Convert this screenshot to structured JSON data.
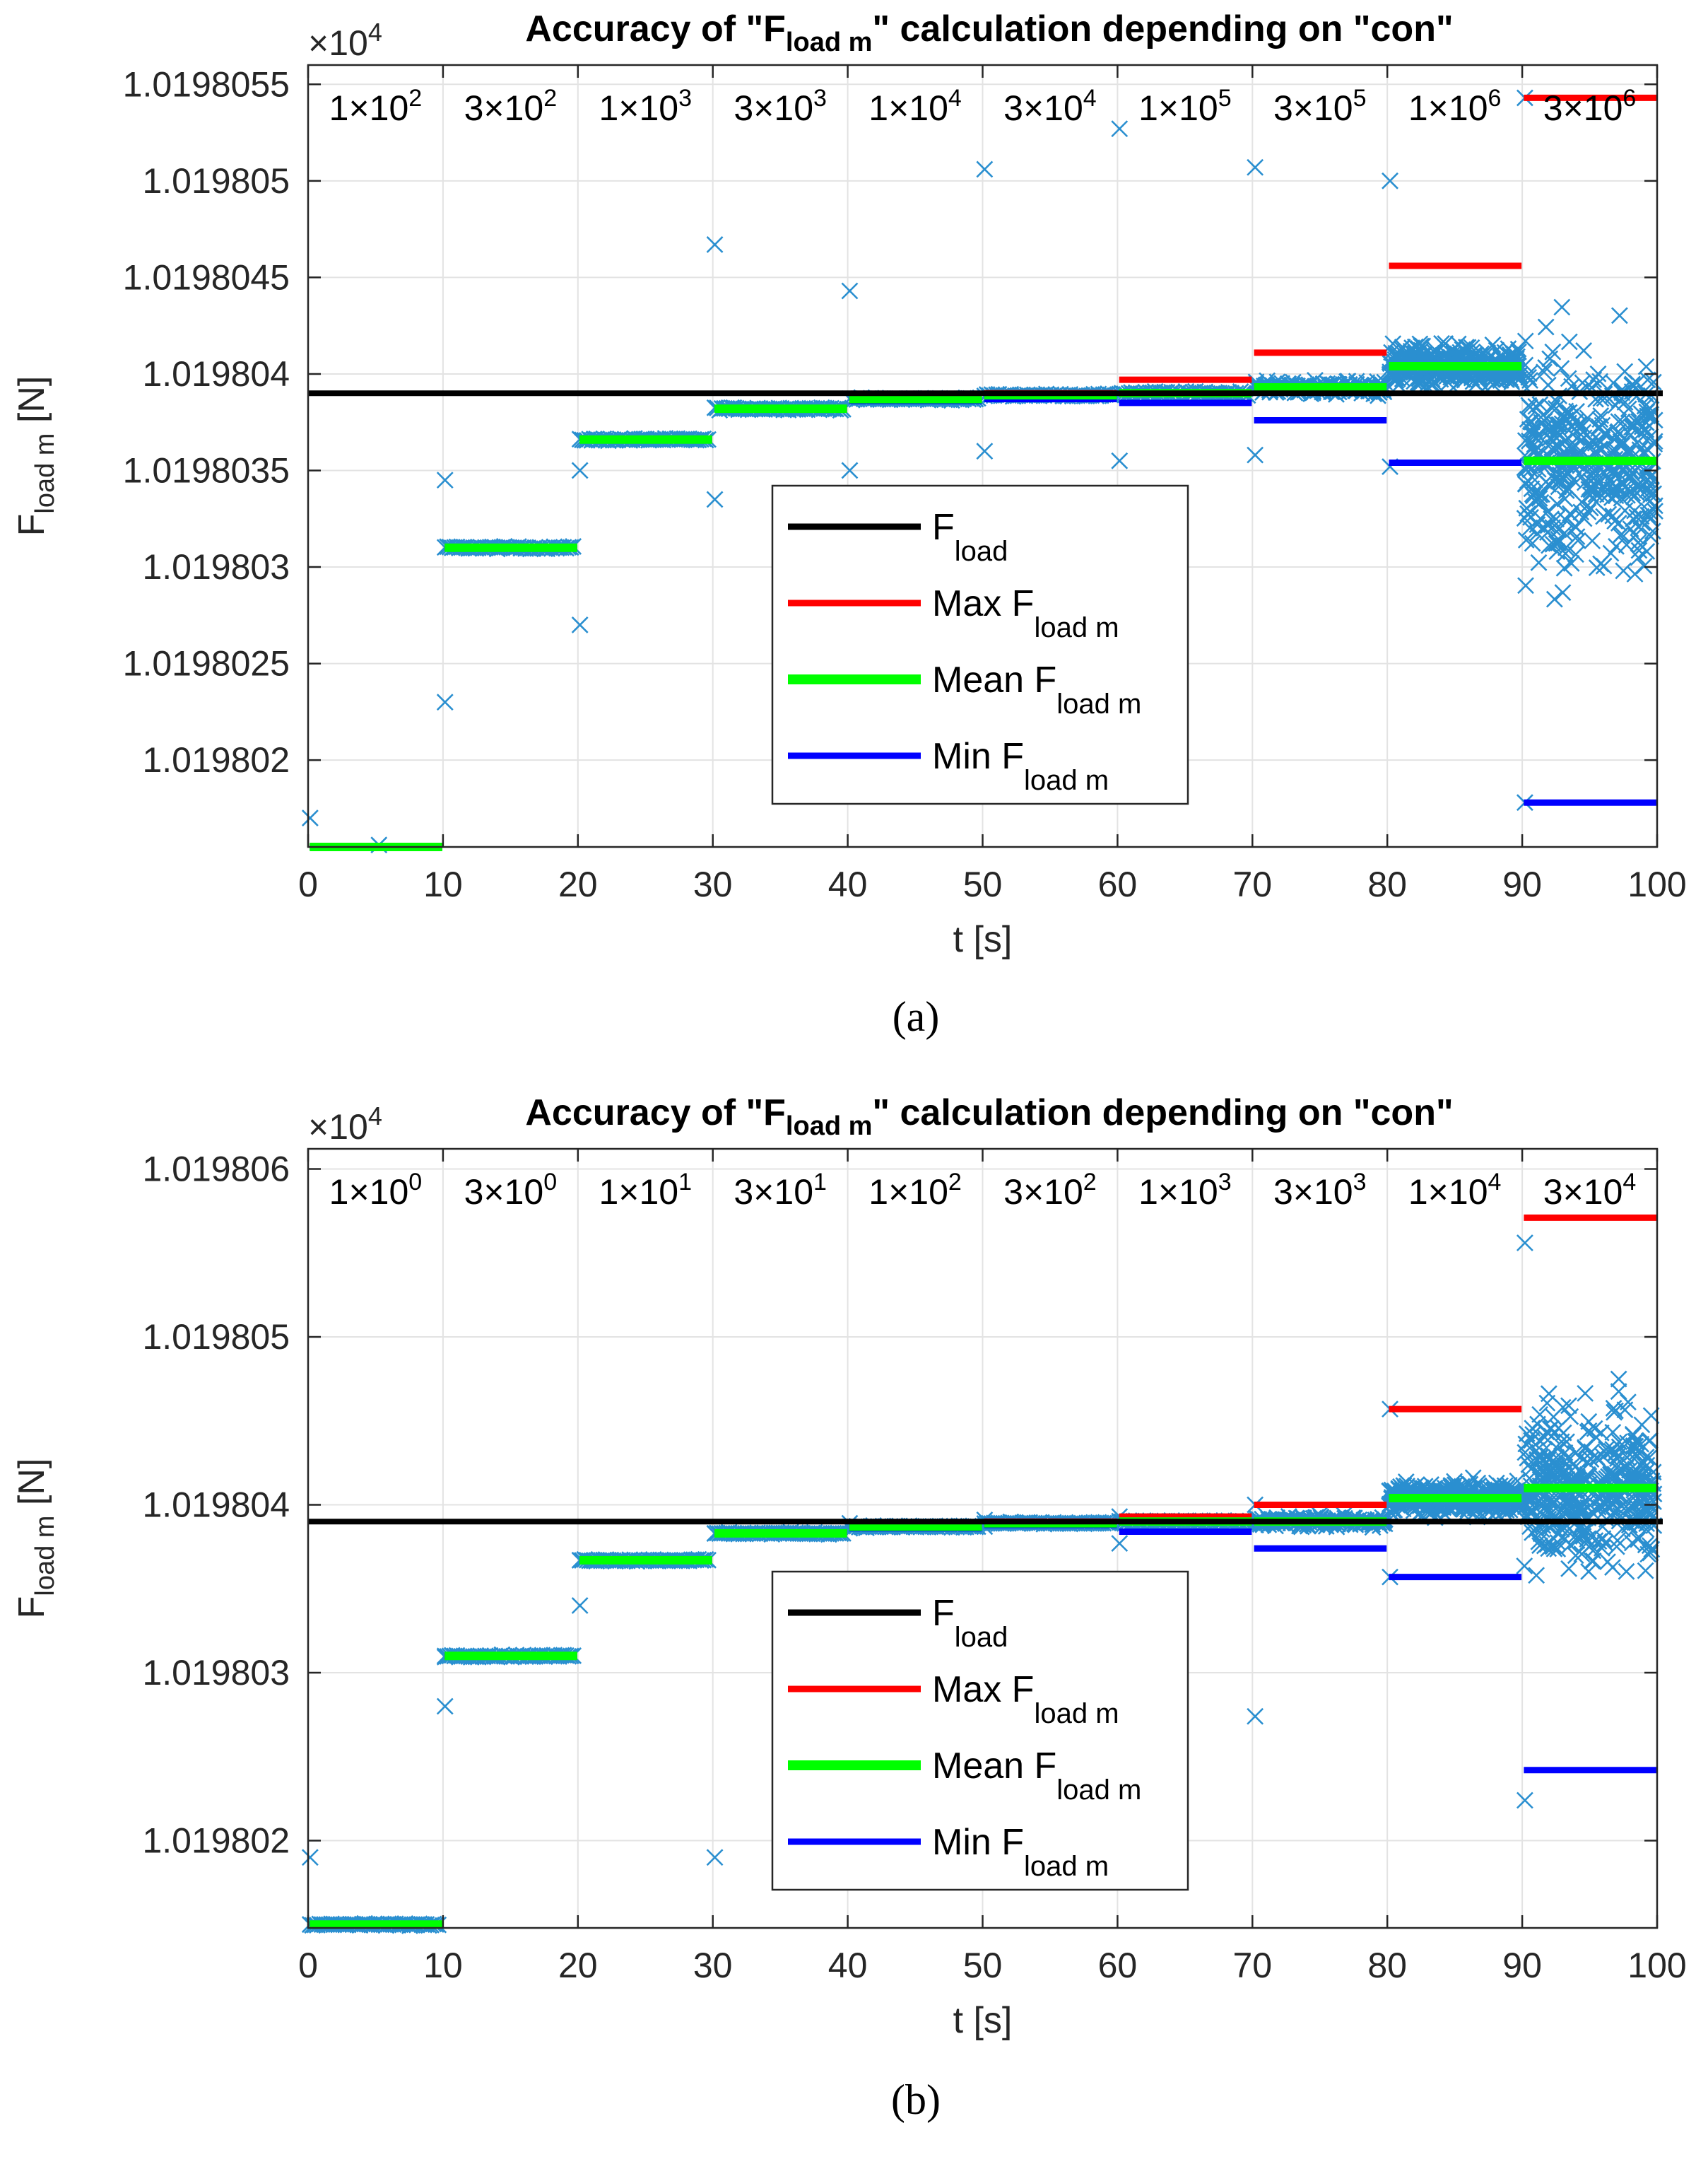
{
  "chart_data": [
    {
      "type": "scatter",
      "caption": "(a)",
      "title": "Accuracy of \"F_load m\" calculation depending on \"con\"",
      "title_parts": [
        "Accuracy of \"F",
        "load m",
        "\" calculation depending on \"con\""
      ],
      "xlabel": "t [s]",
      "ylabel_main": "F",
      "ylabel_sub": "load m",
      "ylabel_unit": " [N]",
      "exponent_base": "×10",
      "exponent_power": "4",
      "xlim": [
        0,
        100
      ],
      "ylim": [
        1.01980155,
        1.0198056
      ],
      "xticks": [
        0,
        10,
        20,
        30,
        40,
        50,
        60,
        70,
        80,
        90,
        100
      ],
      "xtick_labels": [
        "0",
        "10",
        "20",
        "30",
        "40",
        "50",
        "60",
        "70",
        "80",
        "90",
        "100"
      ],
      "yticks": [
        1.019802,
        1.0198025,
        1.019803,
        1.0198035,
        1.019804,
        1.0198045,
        1.019805,
        1.0198055
      ],
      "ytick_labels": [
        "1.019802",
        "1.0198025",
        "1.019803",
        "1.0198035",
        "1.019804",
        "1.0198045",
        "1.019805",
        "1.0198055"
      ],
      "grid": true,
      "segments": [
        {
          "label_base": "1×10",
          "label_exp": "2",
          "x0": 0,
          "x1": 10,
          "center": 1.01980155,
          "spread": 3e-08,
          "min": 1.01980155,
          "mean": 1.01980155,
          "max": 1.01980155,
          "out_lo": 1.01980155,
          "out_hi": 1.0198017
        },
        {
          "label_base": "3×10",
          "label_exp": "2",
          "x0": 10,
          "x1": 20,
          "center": 1.0198031,
          "spread": 2e-08,
          "min": 1.0198031,
          "mean": 1.0198031,
          "max": 1.0198031,
          "out_lo": 1.0198023,
          "out_hi": 1.01980345
        },
        {
          "label_base": "1×10",
          "label_exp": "3",
          "x0": 20,
          "x1": 30,
          "center": 1.01980366,
          "spread": 2e-08,
          "min": 1.01980366,
          "mean": 1.01980366,
          "max": 1.01980366,
          "out_lo": 1.0198027,
          "out_hi": 1.0198035
        },
        {
          "label_base": "3×10",
          "label_exp": "3",
          "x0": 30,
          "x1": 40,
          "center": 1.01980382,
          "spread": 2e-08,
          "min": 1.01980382,
          "mean": 1.01980382,
          "max": 1.01980382,
          "out_lo": 1.01980335,
          "out_hi": 1.01980467
        },
        {
          "label_base": "1×10",
          "label_exp": "4",
          "x0": 40,
          "x1": 50,
          "center": 1.01980387,
          "spread": 2e-08,
          "min": 1.01980386,
          "mean": 1.01980387,
          "max": 1.01980388,
          "out_lo": 1.0198035,
          "out_hi": 1.01980443
        },
        {
          "label_base": "3×10",
          "label_exp": "4",
          "x0": 50,
          "x1": 60,
          "center": 1.01980389,
          "spread": 2e-08,
          "min": 1.01980387,
          "mean": 1.01980389,
          "max": 1.0198039,
          "out_lo": 1.0198036,
          "out_hi": 1.01980506
        },
        {
          "label_base": "1×10",
          "label_exp": "5",
          "x0": 60,
          "x1": 70,
          "center": 1.0198039,
          "spread": 3e-08,
          "min": 1.01980385,
          "mean": 1.0198039,
          "max": 1.01980397,
          "out_lo": 1.01980355,
          "out_hi": 1.01980527
        },
        {
          "label_base": "3×10",
          "label_exp": "5",
          "x0": 70,
          "x1": 80,
          "center": 1.01980392,
          "spread": 6e-08,
          "min": 1.01980376,
          "mean": 1.01980393,
          "max": 1.01980411,
          "out_lo": 1.01980358,
          "out_hi": 1.01980507
        },
        {
          "label_base": "1×10",
          "label_exp": "6",
          "x0": 80,
          "x1": 90,
          "center": 1.01980405,
          "spread": 1.7e-07,
          "min": 1.01980354,
          "mean": 1.01980404,
          "max": 1.01980456,
          "out_lo": 1.01980352,
          "out_hi": 1.019805
        },
        {
          "label_base": "3×10",
          "label_exp": "6",
          "x0": 90,
          "x1": 100,
          "center": 1.01980365,
          "spread": 6e-07,
          "min": 1.01980178,
          "mean": 1.01980355,
          "max": 1.01980543,
          "out_lo": 1.01980178,
          "out_hi": 1.01980543
        }
      ],
      "reference": 1.0198039
    },
    {
      "type": "scatter",
      "caption": "(b)",
      "title": "Accuracy of \"F_load m\" calculation depending on \"con\"",
      "title_parts": [
        "Accuracy of \"F",
        "load m",
        "\" calculation depending on \"con\""
      ],
      "xlabel": "t [s]",
      "ylabel_main": "F",
      "ylabel_sub": "load m",
      "ylabel_unit": " [N]",
      "exponent_base": "×10",
      "exponent_power": "4",
      "xlim": [
        0,
        100
      ],
      "ylim": [
        1.01980148,
        1.01980612
      ],
      "xticks": [
        0,
        10,
        20,
        30,
        40,
        50,
        60,
        70,
        80,
        90,
        100
      ],
      "xtick_labels": [
        "0",
        "10",
        "20",
        "30",
        "40",
        "50",
        "60",
        "70",
        "80",
        "90",
        "100"
      ],
      "yticks": [
        1.019802,
        1.019803,
        1.019804,
        1.019805,
        1.019806
      ],
      "ytick_labels": [
        "1.019802",
        "1.019803",
        "1.019804",
        "1.019805",
        "1.019806"
      ],
      "grid": true,
      "segments": [
        {
          "label_base": "1×10",
          "label_exp": "0",
          "x0": 0,
          "x1": 10,
          "center": 1.0198015,
          "spread": 2e-08,
          "min": 1.0198015,
          "mean": 1.0198015,
          "max": 1.0198015,
          "out_lo": 1.0198015,
          "out_hi": 1.0198019
        },
        {
          "label_base": "3×10",
          "label_exp": "0",
          "x0": 10,
          "x1": 20,
          "center": 1.0198031,
          "spread": 2e-08,
          "min": 1.0198031,
          "mean": 1.0198031,
          "max": 1.0198031,
          "out_lo": 1.0198028,
          "out_hi": 1.0198031
        },
        {
          "label_base": "1×10",
          "label_exp": "1",
          "x0": 20,
          "x1": 30,
          "center": 1.01980367,
          "spread": 2e-08,
          "min": 1.01980367,
          "mean": 1.01980367,
          "max": 1.01980367,
          "out_lo": 1.0198034,
          "out_hi": 1.01980367
        },
        {
          "label_base": "3×10",
          "label_exp": "1",
          "x0": 30,
          "x1": 40,
          "center": 1.01980383,
          "spread": 2e-08,
          "min": 1.01980383,
          "mean": 1.01980383,
          "max": 1.01980383,
          "out_lo": 1.0198019,
          "out_hi": 1.01980383
        },
        {
          "label_base": "1×10",
          "label_exp": "2",
          "x0": 40,
          "x1": 50,
          "center": 1.01980387,
          "spread": 2e-08,
          "min": 1.01980386,
          "mean": 1.01980387,
          "max": 1.01980388,
          "out_lo": 1.01980386,
          "out_hi": 1.01980389
        },
        {
          "label_base": "3×10",
          "label_exp": "2",
          "x0": 50,
          "x1": 60,
          "center": 1.01980389,
          "spread": 2e-08,
          "min": 1.01980388,
          "mean": 1.01980389,
          "max": 1.0198039,
          "out_lo": 1.01980387,
          "out_hi": 1.01980391
        },
        {
          "label_base": "1×10",
          "label_exp": "3",
          "x0": 60,
          "x1": 70,
          "center": 1.0198039,
          "spread": 2e-08,
          "min": 1.01980384,
          "mean": 1.0198039,
          "max": 1.01980393,
          "out_lo": 1.01980377,
          "out_hi": 1.01980393
        },
        {
          "label_base": "3×10",
          "label_exp": "3",
          "x0": 70,
          "x1": 80,
          "center": 1.0198039,
          "spread": 5e-08,
          "min": 1.01980374,
          "mean": 1.0198039,
          "max": 1.019804,
          "out_lo": 1.01980274,
          "out_hi": 1.019804
        },
        {
          "label_base": "1×10",
          "label_exp": "4",
          "x0": 80,
          "x1": 90,
          "center": 1.01980404,
          "spread": 1.6e-07,
          "min": 1.01980357,
          "mean": 1.01980404,
          "max": 1.01980457,
          "out_lo": 1.01980357,
          "out_hi": 1.01980457
        },
        {
          "label_base": "3×10",
          "label_exp": "4",
          "x0": 90,
          "x1": 100,
          "center": 1.0198041,
          "spread": 5e-07,
          "min": 1.01980242,
          "mean": 1.0198041,
          "max": 1.01980571,
          "out_lo": 1.01980224,
          "out_hi": 1.01980556
        }
      ],
      "reference": 1.0198039
    }
  ],
  "legend": {
    "items": [
      {
        "main": "F",
        "sub": "load",
        "color": "#000000"
      },
      {
        "main": "Max F",
        "sub": "load m",
        "color": "#ff0000"
      },
      {
        "main": "Mean F",
        "sub": "load m",
        "color": "#00ff00"
      },
      {
        "main": "Min F",
        "sub": "load m",
        "color": "#0000ff"
      }
    ],
    "placement": "center"
  },
  "colors": {
    "scatter": "#2a8fd0",
    "reference": "#000000",
    "max": "#ff0000",
    "mean": "#00ff00",
    "min": "#0000ff"
  },
  "marker": "x"
}
